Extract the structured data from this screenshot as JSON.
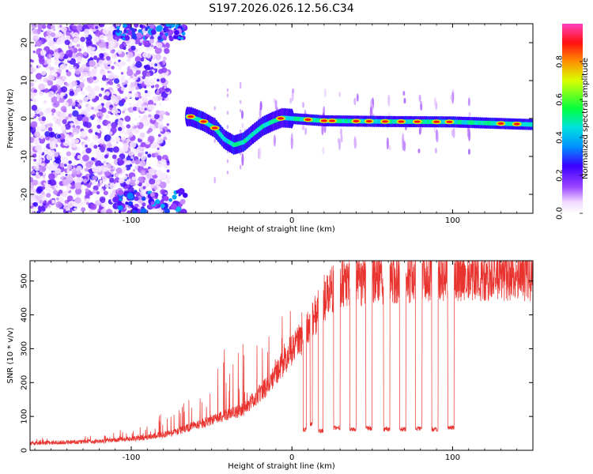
{
  "chart_data": [
    {
      "type": "heatmap",
      "title": "S197.2026.026.12.56.C34",
      "xlabel": "Height of straight line (km)",
      "ylabel": "Frequency (Hz)",
      "xlim": [
        -163,
        150
      ],
      "ylim": [
        -25,
        25
      ],
      "xticks": [
        -100,
        0,
        100
      ],
      "xtick_labels": [
        "-100",
        "0",
        "100"
      ],
      "yticks": [
        20,
        10,
        0,
        -10,
        -20
      ],
      "ytick_labels": [
        "20",
        "10",
        "0",
        "-10",
        "-20"
      ],
      "colorbar": {
        "label": "Normalized spectral amplitude",
        "range": [
          0,
          1
        ],
        "ticks": [
          0.0,
          0.2,
          0.4,
          0.6,
          0.8
        ],
        "tick_labels": [
          "0.0",
          "0.2",
          "0.4",
          "0.6",
          "0.8"
        ],
        "colormap": "rainbow"
      },
      "features": {
        "noise_region_x": [
          -163,
          -65
        ],
        "signal_start_x": -65,
        "track_points": [
          {
            "x": -63,
            "f": 0.5
          },
          {
            "x": -55,
            "f": -0.8
          },
          {
            "x": -48,
            "f": -2.5
          },
          {
            "x": -42,
            "f": -5.5
          },
          {
            "x": -36,
            "f": -7.0
          },
          {
            "x": -30,
            "f": -6.2
          },
          {
            "x": -24,
            "f": -4.0
          },
          {
            "x": -18,
            "f": -2.0
          },
          {
            "x": -12,
            "f": -0.8
          },
          {
            "x": -6,
            "f": 0.2
          },
          {
            "x": 0,
            "f": 0.0
          },
          {
            "x": 20,
            "f": -0.6
          },
          {
            "x": 60,
            "f": -0.8
          },
          {
            "x": 100,
            "f": -0.9
          },
          {
            "x": 150,
            "f": -1.6
          }
        ],
        "pulse_x": [
          -30,
          -20,
          -10,
          0,
          8,
          20,
          30,
          40,
          50,
          60,
          70,
          80,
          90,
          100,
          110
        ],
        "hot_blob_x": [
          -63,
          -55,
          -48,
          -7,
          10,
          20,
          25,
          40,
          48,
          58,
          68,
          78,
          90,
          98,
          130,
          140
        ]
      }
    },
    {
      "type": "line",
      "title": "",
      "xlabel": "Height of straight line (km)",
      "ylabel": "SNR (10 * v/v)",
      "xlim": [
        -163,
        150
      ],
      "ylim": [
        0,
        560
      ],
      "xticks": [
        -100,
        0,
        100
      ],
      "xtick_labels": [
        "-100",
        "0",
        "100"
      ],
      "yticks": [
        0,
        100,
        200,
        300,
        400,
        500
      ],
      "ytick_labels": [
        "0",
        "100",
        "200",
        "300",
        "400",
        "500"
      ],
      "color": "#e8332f",
      "envelope": [
        {
          "x": -163,
          "base": 15,
          "spike": 35
        },
        {
          "x": -120,
          "base": 20,
          "spike": 45
        },
        {
          "x": -90,
          "base": 30,
          "spike": 80
        },
        {
          "x": -75,
          "base": 40,
          "spike": 130
        },
        {
          "x": -60,
          "base": 60,
          "spike": 180
        },
        {
          "x": -45,
          "base": 80,
          "spike": 300
        },
        {
          "x": -30,
          "base": 100,
          "spike": 330
        },
        {
          "x": -15,
          "base": 160,
          "spike": 380
        },
        {
          "x": 0,
          "base": 250,
          "spike": 420
        },
        {
          "x": 10,
          "base": 300,
          "spike": 480
        },
        {
          "x": 20,
          "base": 380,
          "spike": 500
        },
        {
          "x": 30,
          "base": 420,
          "spike": 540
        },
        {
          "x": 60,
          "base": 430,
          "spike": 540
        },
        {
          "x": 100,
          "base": 440,
          "spike": 545
        },
        {
          "x": 150,
          "base": 440,
          "spike": 545
        }
      ],
      "dips": [
        {
          "x": 8,
          "width": 2.0,
          "level": 55
        },
        {
          "x": 12,
          "width": 1.5,
          "level": 70
        },
        {
          "x": 18,
          "width": 3.0,
          "level": 50
        },
        {
          "x": 28,
          "width": 4.0,
          "level": 60
        },
        {
          "x": 38,
          "width": 4.0,
          "level": 55
        },
        {
          "x": 48,
          "width": 4.0,
          "level": 58
        },
        {
          "x": 59,
          "width": 4.0,
          "level": 55
        },
        {
          "x": 69,
          "width": 4.0,
          "level": 55
        },
        {
          "x": 79,
          "width": 4.0,
          "level": 58
        },
        {
          "x": 89,
          "width": 4.0,
          "level": 55
        },
        {
          "x": 99,
          "width": 4.0,
          "level": 60
        }
      ]
    }
  ]
}
